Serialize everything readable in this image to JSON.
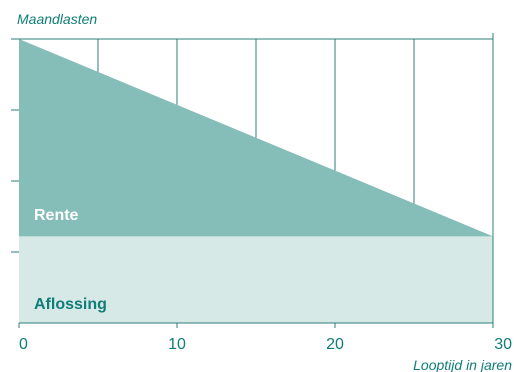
{
  "chart_data": {
    "type": "area",
    "title": "",
    "ylabel": "Maandlasten",
    "xlabel": "Looptijd in jaren",
    "x_ticks": [
      0,
      10,
      20,
      30
    ],
    "xlim": [
      0,
      30
    ],
    "ylim": [
      0,
      4.1
    ],
    "y_tick_count": 4,
    "grid_x_positions": [
      5,
      10,
      15,
      20,
      25,
      30
    ],
    "series": [
      {
        "name": "Aflossing",
        "x": [
          0,
          30
        ],
        "values": [
          1.25,
          1.25
        ]
      },
      {
        "name": "Rente",
        "x": [
          0,
          30
        ],
        "values": [
          2.85,
          0.0
        ]
      }
    ],
    "colors": {
      "rente": "#85bdb9",
      "aflossing": "#d6e9e7",
      "accent": "#0f7d78",
      "axis": "#2c7e7a",
      "label_rente": "#ffffff"
    }
  }
}
